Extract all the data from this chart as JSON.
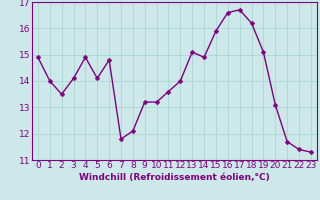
{
  "x": [
    0,
    1,
    2,
    3,
    4,
    5,
    6,
    7,
    8,
    9,
    10,
    11,
    12,
    13,
    14,
    15,
    16,
    17,
    18,
    19,
    20,
    21,
    22,
    23
  ],
  "y": [
    14.9,
    14.0,
    13.5,
    14.1,
    14.9,
    14.1,
    14.8,
    11.8,
    12.1,
    13.2,
    13.2,
    13.6,
    14.0,
    15.1,
    14.9,
    15.9,
    16.6,
    16.7,
    16.2,
    15.1,
    13.1,
    11.7,
    11.4,
    11.3
  ],
  "line_color": "#800080",
  "marker_color": "#800080",
  "bg_color": "#cce8e8",
  "grid_color": "#b0d8d8",
  "xlabel": "Windchill (Refroidissement éolien,°C)",
  "ylim": [
    11,
    17
  ],
  "xlim": [
    -0.5,
    23.5
  ],
  "yticks": [
    11,
    12,
    13,
    14,
    15,
    16,
    17
  ],
  "xticks": [
    0,
    1,
    2,
    3,
    4,
    5,
    6,
    7,
    8,
    9,
    10,
    11,
    12,
    13,
    14,
    15,
    16,
    17,
    18,
    19,
    20,
    21,
    22,
    23
  ],
  "xlabel_fontsize": 6.5,
  "tick_fontsize": 6.5,
  "marker_size": 2.5,
  "line_width": 1.0,
  "spine_color": "#800080"
}
